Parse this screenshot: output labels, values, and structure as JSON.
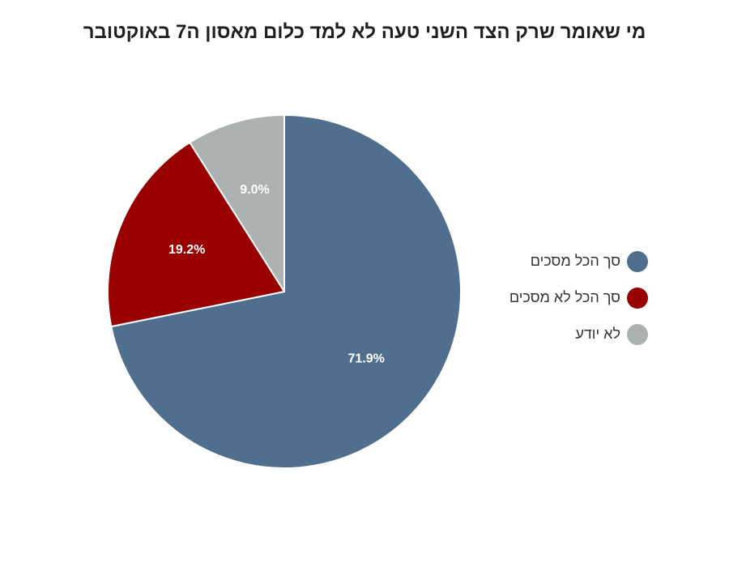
{
  "chart_data": {
    "type": "pie",
    "title": "מי שאומר שרק הצד השני טעה לא למד כלום מאסון ה7 באוקטובר",
    "categories": [
      "סך הכל מסכים",
      "סך הכל לא מסכים",
      "לא יודע"
    ],
    "values": [
      71.9,
      19.2,
      9.0
    ],
    "value_labels": [
      "71.9%",
      "19.2%",
      "9.0%"
    ],
    "colors": [
      "#506f8f",
      "#990000",
      "#acb1b2"
    ],
    "start_angle": "12 o'clock",
    "direction": "clockwise",
    "legend_position": "right"
  }
}
